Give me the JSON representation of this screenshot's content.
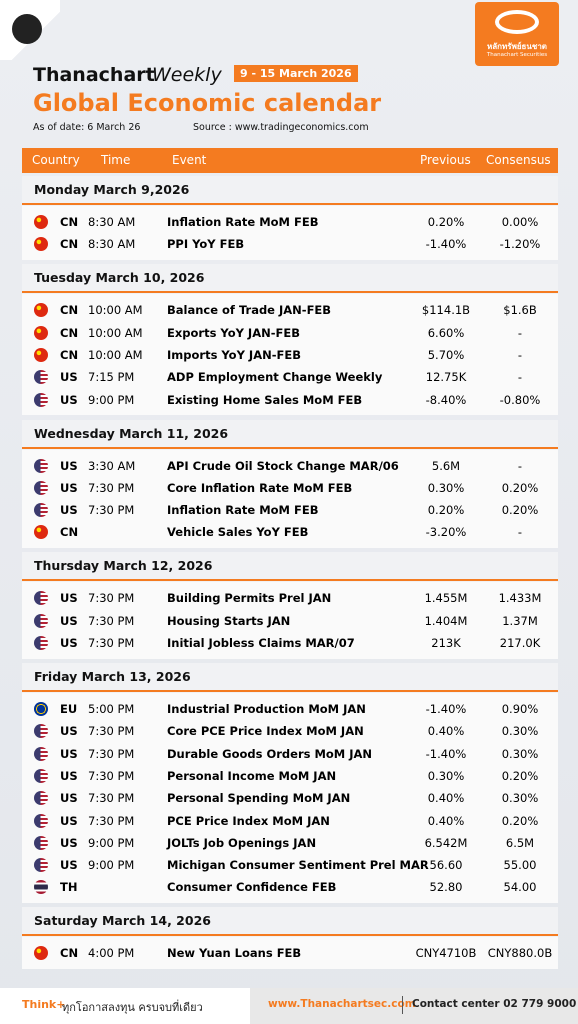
{
  "header": {
    "brand": "Thanachart",
    "edition": "Weekly",
    "date_range": "9 - 15 March 2026",
    "title": "Global Economic calendar",
    "as_of": "As of date: 6 March 26",
    "source": "Source : www.tradingeconomics.com",
    "logo_thai": "หลักทรัพย์ธนชาต",
    "logo_en": "Thanachart Securities"
  },
  "columns": [
    "Country",
    "Time",
    "Event",
    "Previous",
    "Consensus"
  ],
  "days": [
    {
      "label": "Monday  March 9,2026",
      "rows": [
        [
          "CN",
          "8:30 AM",
          "Inflation Rate MoM FEB",
          "0.20%",
          "0.00%"
        ],
        [
          "CN",
          "8:30 AM",
          "PPI YoY FEB",
          "-1.40%",
          "-1.20%"
        ]
      ]
    },
    {
      "label": "Tuesday  March 10, 2026",
      "rows": [
        [
          "CN",
          "10:00 AM",
          "Balance of Trade JAN-FEB",
          "$114.1B",
          "$1.6B"
        ],
        [
          "CN",
          "10:00 AM",
          "Exports YoY JAN-FEB",
          "6.60%",
          "-"
        ],
        [
          "CN",
          "10:00 AM",
          "Imports YoY JAN-FEB",
          "5.70%",
          "-"
        ],
        [
          "US",
          "7:15 PM",
          "ADP Employment Change Weekly",
          "12.75K",
          "-"
        ],
        [
          "US",
          "9:00 PM",
          "Existing Home Sales MoM FEB",
          "-8.40%",
          "-0.80%"
        ]
      ]
    },
    {
      "label": "Wednesday March 11, 2026",
      "rows": [
        [
          "US",
          "3:30 AM",
          "API Crude Oil Stock Change MAR/06",
          "5.6M",
          "-"
        ],
        [
          "US",
          "7:30 PM",
          "Core Inflation Rate MoM FEB",
          "0.30%",
          "0.20%"
        ],
        [
          "US",
          "7:30 PM",
          "Inflation Rate MoM FEB",
          "0.20%",
          "0.20%"
        ],
        [
          "CN",
          null,
          "Vehicle Sales YoY FEB",
          "-3.20%",
          "-"
        ]
      ]
    },
    {
      "label": "Thursday March 12, 2026",
      "rows": [
        [
          "US",
          "7:30 PM",
          "Building Permits Prel JAN",
          "1.455M",
          "1.433M"
        ],
        [
          "US",
          "7:30 PM",
          "Housing Starts JAN",
          "1.404M",
          "1.37M"
        ],
        [
          "US",
          "7:30 PM",
          "Initial Jobless Claims MAR/07",
          "213K",
          "217.0K"
        ]
      ]
    },
    {
      "label": "Friday March 13, 2026",
      "rows": [
        [
          "EU",
          "5:00 PM",
          "Industrial Production MoM JAN",
          "-1.40%",
          "0.90%"
        ],
        [
          "US",
          "7:30 PM",
          "Core PCE Price Index MoM JAN",
          "0.40%",
          "0.30%"
        ],
        [
          "US",
          "7:30 PM",
          "Durable Goods Orders MoM JAN",
          "-1.40%",
          "0.30%"
        ],
        [
          "US",
          "7:30 PM",
          "Personal Income MoM JAN",
          "0.30%",
          "0.20%"
        ],
        [
          "US",
          "7:30 PM",
          "Personal Spending MoM JAN",
          "0.40%",
          "0.30%"
        ],
        [
          "US",
          "7:30 PM",
          "PCE Price Index MoM JAN",
          "0.40%",
          "0.20%"
        ],
        [
          "US",
          "9:00 PM",
          "JOLTs Job Openings JAN",
          "6.542M",
          "6.5M"
        ],
        [
          "US",
          "9:00 PM",
          "Michigan Consumer Sentiment Prel MAR",
          "56.60",
          "55.00"
        ],
        [
          "TH",
          null,
          "Consumer Confidence FEB",
          "52.80",
          "54.00"
        ]
      ]
    },
    {
      "label": "Saturday March 14, 2026",
      "rows": [
        [
          "CN",
          "4:00 PM",
          "New Yuan Loans FEB",
          "CNY4710B",
          "CNY880.0B"
        ]
      ]
    }
  ],
  "footer": {
    "tagline_brand": "Think+",
    "tagline": "ทุกโอกาสลงทุน ครบจบที่เดียว",
    "website": "www.Thanachartsec.com",
    "contact": "Contact center 02 779 9000"
  }
}
